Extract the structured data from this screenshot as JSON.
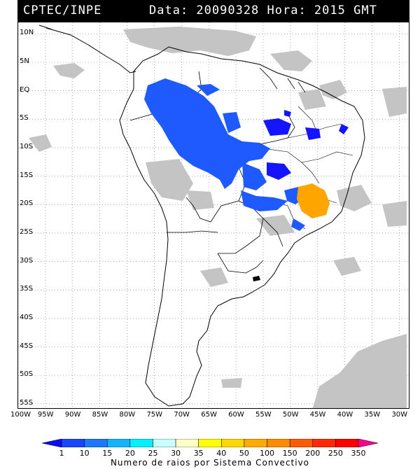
{
  "header": {
    "source": "CPTEC/INPE",
    "datetime": "Data: 20090328 Hora: 2015 GMT"
  },
  "map": {
    "lat_labels": [
      "10N",
      "5N",
      "EQ",
      "5S",
      "10S",
      "15S",
      "20S",
      "25S",
      "30S",
      "35S",
      "40S",
      "45S",
      "50S",
      "55S"
    ],
    "lon_labels": [
      "100W",
      "95W",
      "90W",
      "85W",
      "80W",
      "75W",
      "70W",
      "65W",
      "60W",
      "55W",
      "50W",
      "45W",
      "40W",
      "35W",
      "30W"
    ],
    "lat_range": [
      12,
      -56
    ],
    "lon_range": [
      -100,
      -28
    ],
    "gridlines": true,
    "gridline_style": "dotted"
  },
  "legend": {
    "title": "Numero de raios por Sistema Convectivo",
    "labels": [
      "1",
      "10",
      "15",
      "20",
      "25",
      "30",
      "35",
      "40",
      "50",
      "100",
      "150",
      "200",
      "250",
      "350"
    ],
    "colors": [
      "#0a0aff",
      "#1846ff",
      "#1e78ff",
      "#12b4ff",
      "#00f0ff",
      "#c8ffff",
      "#ffffc8",
      "#ffff00",
      "#ffd700",
      "#ffaa00",
      "#ff8c00",
      "#ff5a00",
      "#ff2800",
      "#ff0000",
      "#ff0090"
    ]
  },
  "storm_colors": {
    "dark_blue": "#1414ff",
    "mid_blue": "#1e5aff",
    "orange": "#ffa500",
    "cloud_gray": "#c4c4c4"
  }
}
